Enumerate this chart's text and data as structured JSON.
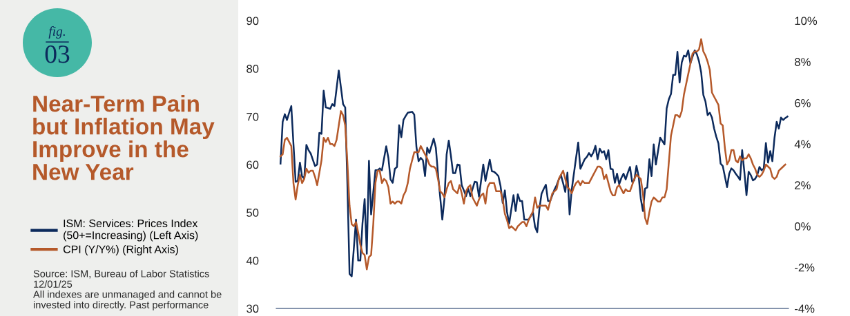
{
  "chart_data": {
    "type": "line",
    "title": "Near-Term Pain but Inflation May Improve in the New Year",
    "annotations": [
      "fig.",
      "03",
      "Source: ISM, Bureau of Labor Statistics 12/01/25",
      "All indexes are unmanaged and cannot be invested into directly. Past performance"
    ],
    "categories": [
      null,
      null,
      null,
      null,
      null,
      null,
      null,
      null,
      null,
      null,
      null,
      null,
      null,
      null,
      null,
      null,
      null,
      null,
      null,
      null,
      null,
      null,
      null,
      null,
      null,
      null,
      null,
      null,
      null,
      null,
      null,
      null,
      null,
      null,
      null,
      null,
      null,
      null,
      null,
      null,
      null,
      null,
      null,
      null,
      null,
      null,
      null,
      null,
      null,
      null,
      null,
      null,
      null,
      null,
      null,
      null,
      null,
      null,
      null,
      null,
      null,
      null,
      null,
      null,
      null,
      null,
      null,
      null,
      null,
      null,
      null,
      null,
      null,
      null,
      null,
      null,
      null,
      null,
      null,
      null,
      null,
      null,
      null,
      null,
      null,
      null,
      null,
      null,
      null,
      null,
      null,
      null,
      null,
      null,
      null,
      null,
      null,
      null,
      null,
      null,
      null,
      null,
      null,
      null,
      null,
      null,
      null,
      null,
      null,
      null,
      null,
      null,
      null,
      null,
      null,
      null,
      null,
      null,
      null,
      null,
      null,
      null,
      null,
      null,
      null,
      null,
      null,
      null,
      null,
      null,
      null,
      null,
      null,
      null,
      null,
      null,
      null,
      null,
      null,
      null,
      null,
      null,
      null,
      null,
      null,
      null,
      null,
      null,
      null,
      null,
      null,
      null,
      null,
      null,
      null,
      null,
      null,
      null,
      null,
      null,
      null,
      null,
      null,
      null,
      null,
      null,
      null,
      null,
      null,
      null,
      null,
      null,
      null,
      null,
      null,
      null,
      null,
      null,
      null,
      null,
      null,
      null,
      null,
      null,
      null,
      null,
      null,
      null,
      null,
      null,
      null,
      null,
      null,
      null,
      null,
      null,
      null,
      null,
      null,
      null,
      null,
      null,
      null,
      null,
      null,
      null,
      null,
      null,
      null,
      null,
      null,
      null,
      null,
      null,
      null,
      null,
      null,
      null,
      null,
      null,
      null,
      null,
      null,
      null,
      null,
      null,
      null,
      null,
      null,
      null,
      null,
      null,
      null,
      null,
      null,
      null
    ],
    "tick_labels": "y",
    "ylim": [
      30,
      90
    ],
    "yticks": [
      30,
      40,
      50,
      60,
      70,
      80,
      90
    ],
    "y2lim": [
      -4,
      10
    ],
    "y2ticks": [
      {
        "value": -4,
        "label": "-4%"
      },
      {
        "value": -2,
        "label": "-2%"
      },
      {
        "value": 0,
        "label": "0%"
      },
      {
        "value": 2,
        "label": "2%"
      },
      {
        "value": 4,
        "label": "4%"
      },
      {
        "value": 6,
        "label": "6%"
      },
      {
        "value": 8,
        "label": "8%"
      },
      {
        "value": 10,
        "label": "10%"
      }
    ],
    "legend": "left",
    "line_style": "solid",
    "series": [
      {
        "name": "ISM: Services: Prices Index (50+=Increasing) (Left Axis)",
        "color": "#0c2a5c",
        "axis": "y",
        "values": [
          60.2,
          68.9,
          70.5,
          69.3,
          70.8,
          72.2,
          64.3,
          56.4,
          56.6,
          60.4,
          57.5,
          57.1,
          64.1,
          63.0,
          62.3,
          61.0,
          59.7,
          60.0,
          66.6,
          66.4,
          75.4,
          71.9,
          71.8,
          71.6,
          72.6,
          72.2,
          75.9,
          79.6,
          76.1,
          72.6,
          71.9,
          56.0,
          37.2,
          36.7,
          42.6,
          48.5,
          40.0,
          40.0,
          47.7,
          52.8,
          41.4,
          60.8,
          49.6,
          54.2,
          58.8,
          58.8,
          59.2,
          58.8,
          61.3,
          63.8,
          61.4,
          56.9,
          56.2,
          59.1,
          59.5,
          68.2,
          65.7,
          69.3,
          70.1,
          70.8,
          70.9,
          71.0,
          70.4,
          63.7,
          60.7,
          61.4,
          60.9,
          57.6,
          63.5,
          62.4,
          63.9,
          65.4,
          63.5,
          58.1,
          53.3,
          48.5,
          52.9,
          62.1,
          65.0,
          61.8,
          58.2,
          58.2,
          60.0,
          59.9,
          55.7,
          54.6,
          53.4,
          55.0,
          53.4,
          54.9,
          56.4,
          56.3,
          53.3,
          56.7,
          60.0,
          56.6,
          58.8,
          61.0,
          58.6,
          58.5,
          58.1,
          57.6,
          55.5,
          52.0,
          54.6,
          50.1,
          47.7,
          50.7,
          53.6,
          50.3,
          53.8,
          52.4,
          52.4,
          48.5,
          48.5,
          48.5,
          49.3,
          50.1,
          47.0,
          45.9,
          50.7,
          53.9,
          54.9,
          55.8,
          52.4,
          52.4,
          53.6,
          54.8,
          55.7,
          56.9,
          57.8,
          56.1,
          54.3,
          58.3,
          49.6,
          54.8,
          58.1,
          61.4,
          64.6,
          59.1,
          60.1,
          61.1,
          61.6,
          62.4,
          61.7,
          62.5,
          63.9,
          61.1,
          63.3,
          62.5,
          62.8,
          61.1,
          63.0,
          59.1,
          59.0,
          56.2,
          58.1,
          55.9,
          57.2,
          58.1,
          56.9,
          58.3,
          59.5,
          56.4,
          56.7,
          59.7,
          57.6,
          52.9,
          50.3,
          55.0,
          55.2,
          61.1,
          57.6,
          64.2,
          60.0,
          62.8,
          65.6,
          64.9,
          64.2,
          71.7,
          73.6,
          74.7,
          78.7,
          78.7,
          83.5,
          77.1,
          81.3,
          82.7,
          82.5,
          83.8,
          81.1,
          82.5,
          83.8,
          83.0,
          81.5,
          79.2,
          74.5,
          73.1,
          70.3,
          70.8,
          69.8,
          67.5,
          65.8,
          64.4,
          60.2,
          59.7,
          57.5,
          55.3,
          58.1,
          59.2,
          58.8,
          58.1,
          57.5,
          56.8,
          63.0,
          58.5,
          53.6,
          58.5,
          57.8,
          56.7,
          57.0,
          57.8,
          59.5,
          58.8,
          59.2,
          64.5,
          60.4,
          62.8,
          60.7,
          65.6,
          68.9,
          67.5,
          69.8,
          69.3,
          69.7,
          70.0
        ]
      },
      {
        "name": "CPI (Y/Y%) (Right Axis)",
        "color": "#b5592a",
        "axis": "y2",
        "values": [
          3.4,
          3.5,
          4.2,
          4.3,
          4.1,
          3.9,
          2.1,
          1.3,
          2.0,
          2.5,
          2.1,
          2.3,
          2.8,
          2.6,
          2.7,
          2.7,
          2.4,
          2.0,
          2.6,
          3.2,
          4.3,
          4.1,
          4.3,
          4.0,
          4.0,
          3.9,
          4.2,
          4.9,
          5.6,
          5.4,
          4.9,
          3.1,
          1.0,
          0.1,
          0.0,
          0.2,
          -0.3,
          -0.9,
          -1.3,
          -1.4,
          -2.1,
          -1.5,
          -1.4,
          0.1,
          2.1,
          2.7,
          2.7,
          2.1,
          2.3,
          2.2,
          1.9,
          1.1,
          1.2,
          1.1,
          1.2,
          1.2,
          1.1,
          1.5,
          1.7,
          2.1,
          2.8,
          3.2,
          3.6,
          3.6,
          3.6,
          3.9,
          3.7,
          3.5,
          3.3,
          3.0,
          2.9,
          2.9,
          2.8,
          2.3,
          1.7,
          1.6,
          1.4,
          1.8,
          2.1,
          2.2,
          1.8,
          1.7,
          1.6,
          2.0,
          1.6,
          1.1,
          1.7,
          1.9,
          2.0,
          1.4,
          1.2,
          1.0,
          1.3,
          1.5,
          1.6,
          1.1,
          1.9,
          2.1,
          2.1,
          2.1,
          1.7,
          1.7,
          1.7,
          1.3,
          0.6,
          0.3,
          -0.1,
          0.0,
          -0.1,
          -0.2,
          0.0,
          0.1,
          0.2,
          0.2,
          0.0,
          0.3,
          0.5,
          0.7,
          1.4,
          0.9,
          1.0,
          1.0,
          1.0,
          1.0,
          0.8,
          1.2,
          1.6,
          1.7,
          1.8,
          2.3,
          2.5,
          2.7,
          2.3,
          1.9,
          1.8,
          1.6,
          1.9,
          2.1,
          2.2,
          2.0,
          2.2,
          2.1,
          2.1,
          2.1,
          2.3,
          2.5,
          2.7,
          2.9,
          2.9,
          2.8,
          2.3,
          2.5,
          2.1,
          1.7,
          1.5,
          1.5,
          1.9,
          2.0,
          1.8,
          1.6,
          1.8,
          1.7,
          1.7,
          2.0,
          2.3,
          2.5,
          2.4,
          2.3,
          1.6,
          0.4,
          0.1,
          0.7,
          1.2,
          1.4,
          1.3,
          1.2,
          1.2,
          1.4,
          1.4,
          1.8,
          3.1,
          4.4,
          4.9,
          5.4,
          5.4,
          5.3,
          5.6,
          6.4,
          6.9,
          7.4,
          7.9,
          8.4,
          8.5,
          8.5,
          8.6,
          9.1,
          8.5,
          8.3,
          8.0,
          7.6,
          6.5,
          6.3,
          6.1,
          5.9,
          5.0,
          4.9,
          3.8,
          3.0,
          3.2,
          3.7,
          3.7,
          3.2,
          3.1,
          3.4,
          3.2,
          3.3,
          3.3,
          3.5,
          3.3,
          3.0,
          2.8,
          2.5,
          2.4,
          2.5,
          2.7,
          3.0,
          2.9,
          2.8,
          2.4,
          2.3,
          2.4,
          2.7,
          2.8,
          2.9,
          3.0,
          null
        ]
      }
    ]
  }
}
